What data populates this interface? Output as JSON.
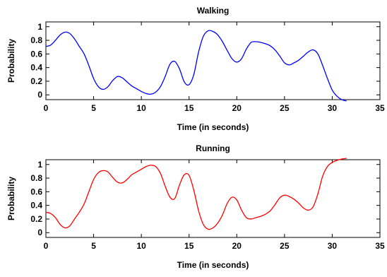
{
  "chart_data": [
    {
      "type": "line",
      "title": "Walking",
      "xlabel": "Time (in seconds)",
      "ylabel": "Probability",
      "xlim": [
        0,
        35
      ],
      "ylim": [
        -0.07,
        1.07
      ],
      "xticks": [
        0,
        5,
        10,
        15,
        20,
        25,
        30,
        35
      ],
      "yticks": [
        0,
        0.2,
        0.4,
        0.6,
        0.8,
        1
      ],
      "ytick_labels": [
        "0",
        "0.2",
        "0.4",
        "0.6",
        "0.8",
        "1"
      ],
      "grid": false,
      "series": [
        {
          "color": "#0000ff",
          "x": [
            0,
            0.5,
            1,
            1.5,
            2,
            2.5,
            3,
            3.5,
            4,
            4.5,
            5,
            5.5,
            6,
            6.5,
            7,
            7.5,
            8,
            8.5,
            9,
            9.5,
            10,
            10.5,
            11,
            11.5,
            12,
            12.5,
            13,
            13.5,
            14,
            14.5,
            15,
            15.5,
            16,
            16.5,
            17,
            17.5,
            18,
            18.5,
            19,
            19.5,
            20,
            20.5,
            21,
            21.5,
            22,
            22.5,
            23,
            23.5,
            24,
            24.5,
            25,
            25.5,
            26,
            26.5,
            27,
            27.5,
            28,
            28.5,
            29,
            29.5,
            30,
            30.5,
            31,
            31.5
          ],
          "y": [
            0.71,
            0.73,
            0.8,
            0.88,
            0.92,
            0.9,
            0.82,
            0.71,
            0.6,
            0.43,
            0.24,
            0.12,
            0.08,
            0.12,
            0.21,
            0.27,
            0.25,
            0.19,
            0.13,
            0.09,
            0.05,
            0.02,
            0.01,
            0.04,
            0.12,
            0.27,
            0.45,
            0.49,
            0.38,
            0.19,
            0.15,
            0.3,
            0.63,
            0.86,
            0.94,
            0.93,
            0.88,
            0.78,
            0.65,
            0.53,
            0.48,
            0.53,
            0.67,
            0.77,
            0.78,
            0.77,
            0.75,
            0.72,
            0.66,
            0.57,
            0.47,
            0.44,
            0.47,
            0.51,
            0.57,
            0.63,
            0.66,
            0.6,
            0.43,
            0.24,
            0.07,
            -0.02,
            -0.07,
            -0.09
          ]
        }
      ]
    },
    {
      "type": "line",
      "title": "Running",
      "xlabel": "Time (in seconds)",
      "ylabel": "Probability",
      "xlim": [
        0,
        35
      ],
      "ylim": [
        -0.07,
        1.07
      ],
      "xticks": [
        0,
        5,
        10,
        15,
        20,
        25,
        30,
        35
      ],
      "yticks": [
        0,
        0.2,
        0.4,
        0.6,
        0.8,
        1
      ],
      "ytick_labels": [
        "0",
        "0.2",
        "0.4",
        "0.6",
        "0.8",
        "1"
      ],
      "grid": false,
      "series": [
        {
          "color": "#ff0000",
          "x": [
            0,
            0.5,
            1,
            1.5,
            2,
            2.5,
            3,
            3.5,
            4,
            4.5,
            5,
            5.5,
            6,
            6.5,
            7,
            7.5,
            8,
            8.5,
            9,
            9.5,
            10,
            10.5,
            11,
            11.5,
            12,
            12.5,
            13,
            13.5,
            14,
            14.5,
            15,
            15.5,
            16,
            16.5,
            17,
            17.5,
            18,
            18.5,
            19,
            19.5,
            20,
            20.5,
            21,
            21.5,
            22,
            22.5,
            23,
            23.5,
            24,
            24.5,
            25,
            25.5,
            26,
            26.5,
            27,
            27.5,
            28,
            28.5,
            29,
            29.5,
            30,
            30.5,
            31,
            31.5
          ],
          "y": [
            0.3,
            0.28,
            0.22,
            0.12,
            0.07,
            0.1,
            0.2,
            0.3,
            0.42,
            0.6,
            0.78,
            0.88,
            0.91,
            0.89,
            0.81,
            0.74,
            0.73,
            0.78,
            0.85,
            0.89,
            0.93,
            0.97,
            0.99,
            0.97,
            0.87,
            0.68,
            0.52,
            0.5,
            0.7,
            0.85,
            0.84,
            0.62,
            0.32,
            0.12,
            0.05,
            0.07,
            0.14,
            0.26,
            0.43,
            0.52,
            0.48,
            0.33,
            0.22,
            0.2,
            0.22,
            0.24,
            0.27,
            0.32,
            0.41,
            0.51,
            0.55,
            0.53,
            0.49,
            0.43,
            0.36,
            0.33,
            0.38,
            0.57,
            0.83,
            0.97,
            1.03,
            1.06,
            1.08,
            1.09
          ]
        }
      ]
    }
  ]
}
